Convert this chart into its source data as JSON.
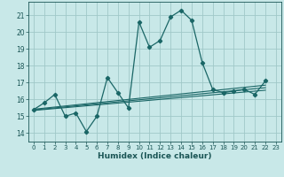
{
  "xlabel": "Humidex (Indice chaleur)",
  "background_color": "#c8e8e8",
  "grid_color": "#a0c8c8",
  "line_color": "#1a6666",
  "tick_color": "#1a5555",
  "xlim": [
    -0.5,
    23.5
  ],
  "ylim": [
    13.5,
    21.8
  ],
  "yticks": [
    14,
    15,
    16,
    17,
    18,
    19,
    20,
    21
  ],
  "xticks": [
    0,
    1,
    2,
    3,
    4,
    5,
    6,
    7,
    8,
    9,
    10,
    11,
    12,
    13,
    14,
    15,
    16,
    17,
    18,
    19,
    20,
    21,
    22,
    23
  ],
  "main_series": [
    [
      0,
      15.4
    ],
    [
      1,
      15.8
    ],
    [
      2,
      16.3
    ],
    [
      3,
      15.0
    ],
    [
      4,
      15.2
    ],
    [
      5,
      14.1
    ],
    [
      6,
      15.0
    ],
    [
      7,
      17.3
    ],
    [
      8,
      16.4
    ],
    [
      9,
      15.5
    ],
    [
      10,
      20.6
    ],
    [
      11,
      19.1
    ],
    [
      12,
      19.5
    ],
    [
      13,
      20.9
    ],
    [
      14,
      21.3
    ],
    [
      15,
      20.7
    ],
    [
      16,
      18.2
    ],
    [
      17,
      16.6
    ],
    [
      18,
      16.4
    ],
    [
      19,
      16.5
    ],
    [
      20,
      16.6
    ],
    [
      21,
      16.3
    ],
    [
      22,
      17.1
    ]
  ],
  "regression_lines": [
    [
      [
        0,
        15.35
      ],
      [
        22,
        16.55
      ]
    ],
    [
      [
        0,
        15.38
      ],
      [
        22,
        16.7
      ]
    ],
    [
      [
        0,
        15.42
      ],
      [
        22,
        16.85
      ]
    ]
  ]
}
